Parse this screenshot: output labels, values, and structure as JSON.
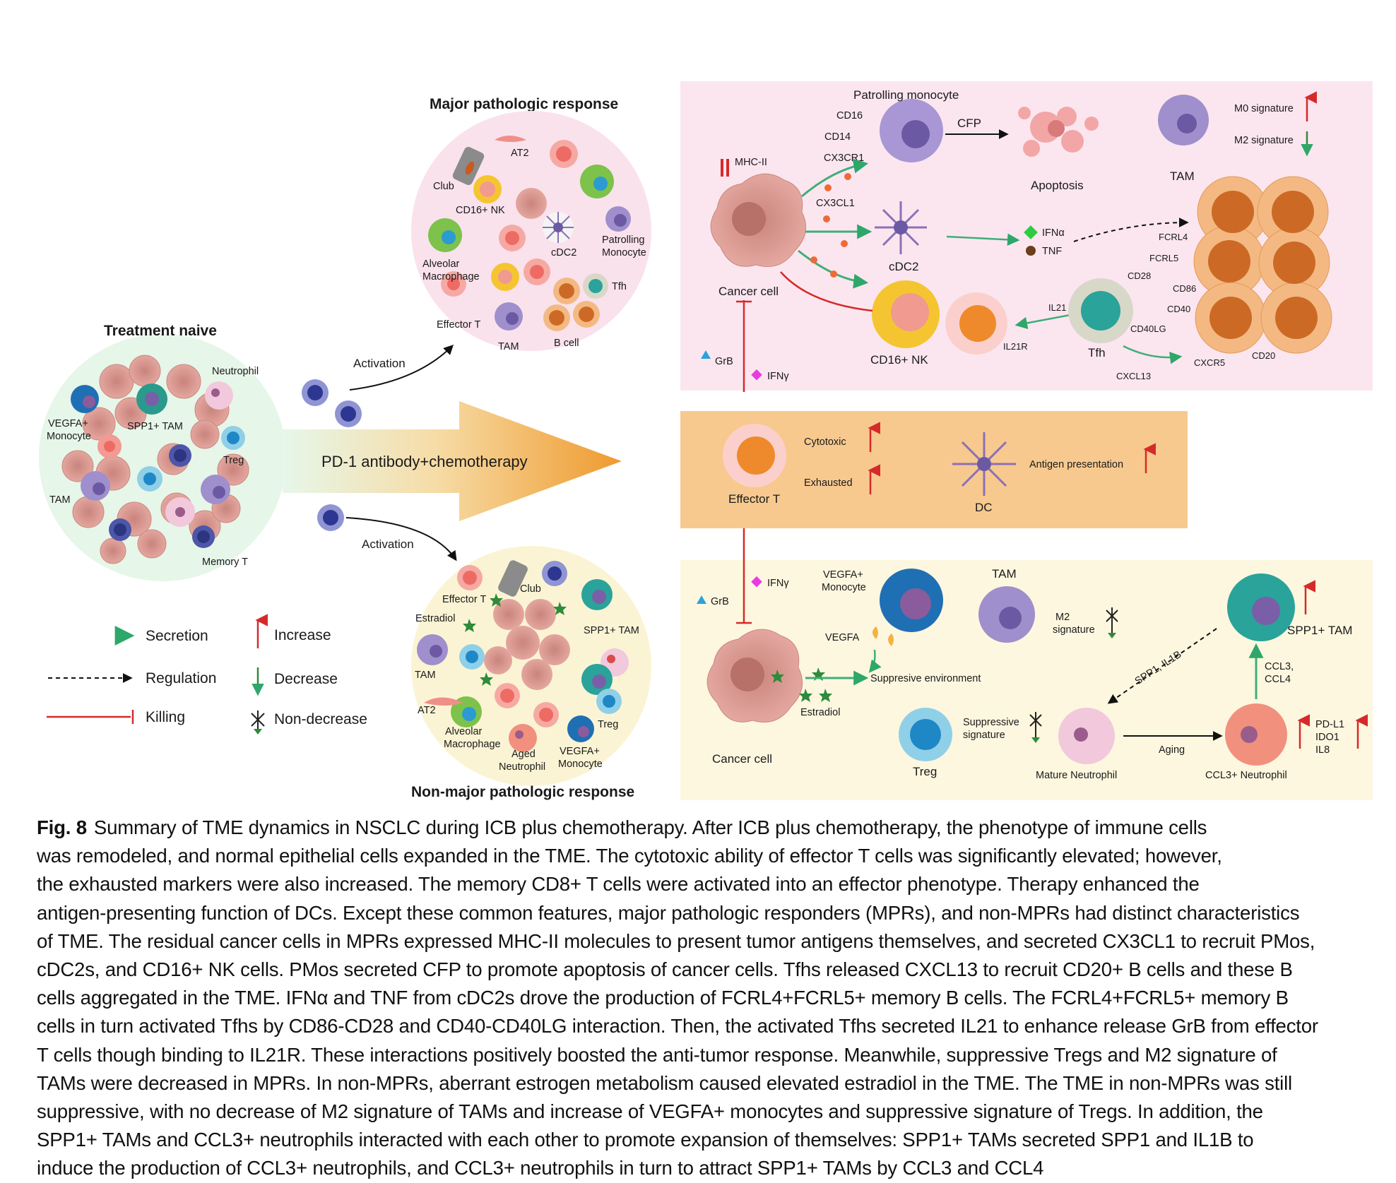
{
  "panels": {
    "treatment_naive": {
      "title": "Treatment naive",
      "labels": {
        "neutrophil": "Neutrophil",
        "vegfa_monocyte_1": "VEGFA+",
        "vegfa_monocyte_2": "Monocyte",
        "spp1_tam": "SPP1+ TAM",
        "treg": "Treg",
        "tam": "TAM",
        "memory_t": "Memory T"
      }
    },
    "mpr_circle": {
      "title": "Major pathologic response",
      "labels": {
        "at2": "AT2",
        "club": "Club",
        "cd16_nk": "CD16+ NK",
        "alveolar_1": "Alveolar",
        "alveolar_2": "Macrophage",
        "cdc2": "cDC2",
        "patrolling_1": "Patrolling",
        "patrolling_2": "Monocyte",
        "effector_t": "Effector T",
        "tam": "TAM",
        "b_cell": "B cell",
        "tfh": "Tfh"
      }
    },
    "nmpr_circle": {
      "title": "Non-major pathologic response",
      "labels": {
        "effector_t": "Effector T",
        "club": "Club",
        "estradiol": "Estradiol",
        "spp1_tam": "SPP1+ TAM",
        "tam": "TAM",
        "at2": "AT2",
        "treg": "Treg",
        "alveolar_1": "Alveolar",
        "alveolar_2": "Macrophage",
        "aged_1": "Aged",
        "aged_2": "Neutrophil",
        "vegfa_1": "VEGFA+",
        "vegfa_2": "Monocyte"
      }
    },
    "arrows": {
      "activation_top": "Activation",
      "activation_bottom": "Activation",
      "therapy": "PD-1 antibody+chemotherapy"
    },
    "mpr_box": {
      "patrolling_monocyte": "Patrolling monocyte",
      "cd16": "CD16",
      "cd14": "CD14",
      "cx3cr1": "CX3CR1",
      "cfp": "CFP",
      "apoptosis": "Apoptosis",
      "tam": "TAM",
      "m0": "M0 signature",
      "m2": "M2 signature",
      "mhc2": "MHC-II",
      "cx3cl1": "CX3CL1",
      "cancer_cell": "Cancer cell",
      "cdc2": "cDC2",
      "ifna": "IFNα",
      "tnf": "TNF",
      "fcrl4": "FCRL4",
      "fcrl5": "FCRL5",
      "cd28": "CD28",
      "cd86": "CD86",
      "il21": "IL21",
      "cd40": "CD40",
      "cd40lg": "CD40LG",
      "il21r": "IL21R",
      "tfh": "Tfh",
      "cxcr5": "CXCR5",
      "cd20": "CD20",
      "cxcl13": "CXCL13",
      "cd16nk": "CD16+ NK",
      "grb": "GrB",
      "ifng": "IFNγ"
    },
    "common_band": {
      "cytotoxic": "Cytotoxic",
      "exhausted": "Exhausted",
      "effector_t": "Effector T",
      "antigen": "Antigen presentation",
      "dc": "DC"
    },
    "nmpr_box": {
      "ifng": "IFNγ",
      "grb": "GrB",
      "vegfa_mono_1": "VEGFA+",
      "vegfa_mono_2": "Monocyte",
      "vegfa": "VEGFA",
      "tam": "TAM",
      "m2_1": "M2",
      "m2_2": "signature",
      "spp1_il1b": "SPP1, IL1B",
      "spp1_tam": "SPP1+ TAM",
      "suppressive_env": "Suppresive environment",
      "estradiol": "Estradiol",
      "cancer_cell": "Cancer cell",
      "supp_sig_1": "Suppressive",
      "supp_sig_2": "signature",
      "treg": "Treg",
      "mature_neutrophil": "Mature Neutrophil",
      "aging": "Aging",
      "ccl3_neutrophil": "CCL3+ Neutrophil",
      "ccl3_1": "CCL3,",
      "ccl3_2": "CCL4",
      "pdl1": "PD-L1",
      "ido1": "IDO1",
      "il8": "IL8"
    }
  },
  "legend": {
    "secretion": "Secretion",
    "regulation": "Regulation",
    "killing": "Killing",
    "increase": "Increase",
    "decrease": "Decrease",
    "non_decrease": "Non-decrease"
  },
  "caption": {
    "label": "Fig. 8",
    "lines": [
      "Summary of TME dynamics in NSCLC during ICB plus chemotherapy. After ICB plus chemotherapy, the phenotype of immune cells",
      "was remodeled, and normal epithelial cells expanded in the TME. The cytotoxic ability of effector T cells was significantly elevated; however,",
      "the exhausted markers were also increased. The memory CD8+ T cells were activated into an effector phenotype. Therapy enhanced the",
      "antigen-presenting function of DCs. Except these common features, major pathologic responders (MPRs), and non-MPRs had distinct characteristics",
      "of TME. The residual cancer cells in MPRs expressed MHC-II molecules to present tumor antigens themselves, and secreted CX3CL1 to recruit PMos,",
      "cDC2s, and CD16+ NK cells. PMos secreted CFP to promote apoptosis of cancer cells. Tfhs released CXCL13 to recruit CD20+ B cells and these B",
      "cells aggregated in the TME. IFNα and TNF from cDC2s drove the production of FCRL4+FCRL5+ memory B cells. The FCRL4+FCRL5+ memory B",
      "cells in turn activated Tfhs by CD86-CD28 and CD40-CD40LG interaction. Then, the activated Tfhs secreted IL21 to enhance release GrB from effector",
      "T cells though binding to IL21R. These interactions positively boosted the anti-tumor response. Meanwhile, suppressive Tregs and M2 signature of",
      "TAMs were decreased in MPRs. In non-MPRs, aberrant estrogen metabolism caused elevated estradiol in the TME. The TME in non-MPRs was still",
      "suppressive, with no decrease of M2 signature of TAMs and increase of VEGFA+ monocytes and suppressive signature of Tregs. In addition, the",
      "SPP1+ TAMs and CCL3+ neutrophils interacted with each other to promote expansion of themselves: SPP1+ TAMs secreted SPP1 and IL1B to",
      "induce the production of CCL3+ neutrophils, and CCL3+ neutrophils in turn to attract SPP1+ TAMs by CCL3 and CCL4"
    ]
  },
  "colors": {
    "mpr_bg": "#fbe6f0",
    "nmpr_bg": "#fdf7df",
    "band_bg": "#f7c98f",
    "cancer": "#d99a93",
    "orange_cell": "#ee8a2b",
    "purple": "#8f7fbf",
    "teal": "#2aa39a",
    "green_arrow": "#3fae79",
    "red_arrow": "#d62a2a"
  }
}
